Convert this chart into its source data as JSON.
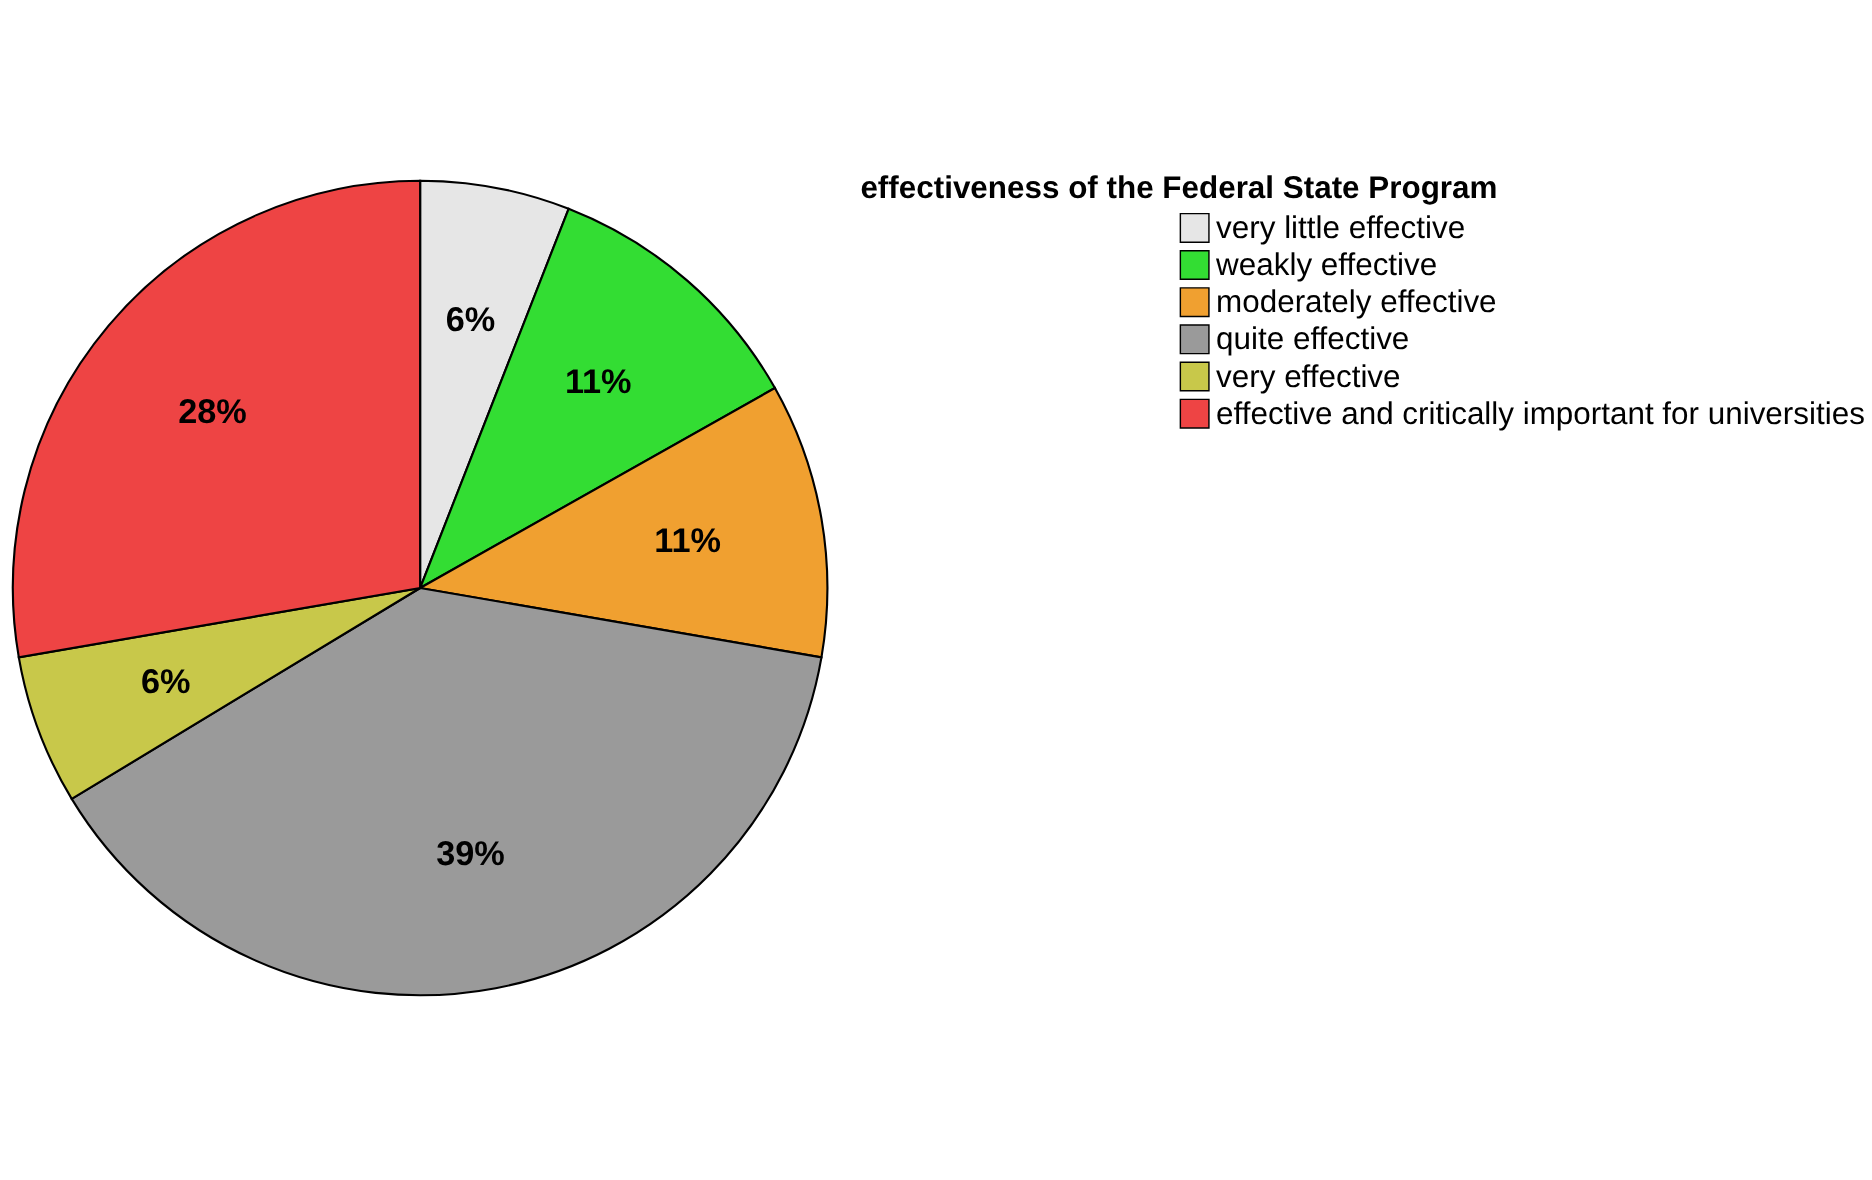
{
  "chart_data": {
    "type": "pie",
    "legend_title": "effectiveness of the Federal State Program",
    "legend": "right",
    "categories": [
      "very little effective",
      "weakly effective",
      "moderately effective",
      "quite effective",
      "very effective",
      "effective and critically important for universities"
    ],
    "values": [
      6,
      11,
      11,
      39,
      6,
      28
    ],
    "value_labels": [
      "6%",
      "11%",
      "11%",
      "39%",
      "6%",
      "28%"
    ],
    "colors": [
      "#e6e6e6",
      "#33dd33",
      "#f0a030",
      "#9a9a9a",
      "#c8c84a",
      "#ee4444"
    ]
  }
}
